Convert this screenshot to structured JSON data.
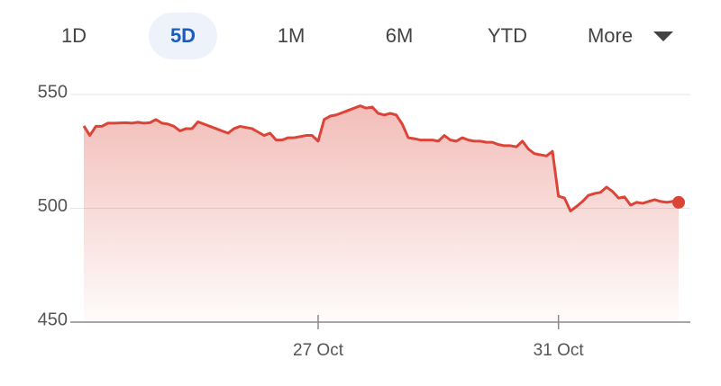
{
  "tabs": [
    {
      "label": "1D"
    },
    {
      "label": "5D",
      "selected": true
    },
    {
      "label": "1M"
    },
    {
      "label": "6M"
    },
    {
      "label": "YTD"
    },
    {
      "label": "More"
    }
  ],
  "chart_data": {
    "type": "line",
    "color": "#db4437",
    "grid": true,
    "end_marker": true,
    "categories": [
      null,
      null,
      null,
      null,
      null,
      null,
      null,
      null,
      null,
      null,
      null,
      null,
      null,
      null,
      null,
      null,
      null,
      null,
      null,
      null,
      null,
      null,
      null,
      null,
      null,
      null,
      null,
      null,
      null,
      null,
      null,
      null,
      null,
      null,
      null,
      null,
      null,
      null,
      null,
      "27 Oct",
      null,
      null,
      null,
      null,
      null,
      null,
      null,
      null,
      null,
      null,
      null,
      null,
      null,
      null,
      null,
      null,
      null,
      null,
      null,
      null,
      null,
      null,
      null,
      null,
      null,
      null,
      null,
      null,
      null,
      null,
      null,
      null,
      null,
      null,
      null,
      null,
      null,
      null,
      null,
      "31 Oct",
      null,
      null,
      null,
      null,
      null,
      null,
      null,
      null,
      null,
      null,
      null,
      null,
      null,
      null,
      null,
      null,
      null,
      null,
      null,
      null
    ],
    "values": [
      536.2,
      532,
      536,
      536,
      537.4,
      537.4,
      537.5,
      537.6,
      537.4,
      537.8,
      537.4,
      537.6,
      539,
      537.4,
      537,
      536,
      534,
      535,
      535,
      538,
      537,
      536,
      535,
      534,
      533,
      535,
      536,
      535.5,
      535,
      533.5,
      532,
      533,
      530,
      530,
      531,
      531,
      531.5,
      532,
      532,
      529.5,
      539,
      540.5,
      541,
      542,
      543,
      544,
      545,
      544,
      544.5,
      541.7,
      541,
      541.7,
      541,
      537,
      531,
      530.6,
      530,
      530,
      530,
      529.5,
      532,
      530,
      529.5,
      531,
      530,
      529.5,
      529.5,
      529,
      529,
      528,
      527.5,
      527.5,
      527,
      529.5,
      526,
      524,
      523.5,
      523,
      525,
      505.3,
      504.5,
      498.8,
      500.8,
      503,
      505.7,
      506.5,
      507,
      509.3,
      507.4,
      504.5,
      505,
      501.4,
      502.6,
      502.2,
      503,
      503.8,
      503,
      502.6,
      503,
      502.6
    ],
    "ylim": [
      450,
      550
    ],
    "yticks": [
      450,
      500,
      550
    ]
  }
}
